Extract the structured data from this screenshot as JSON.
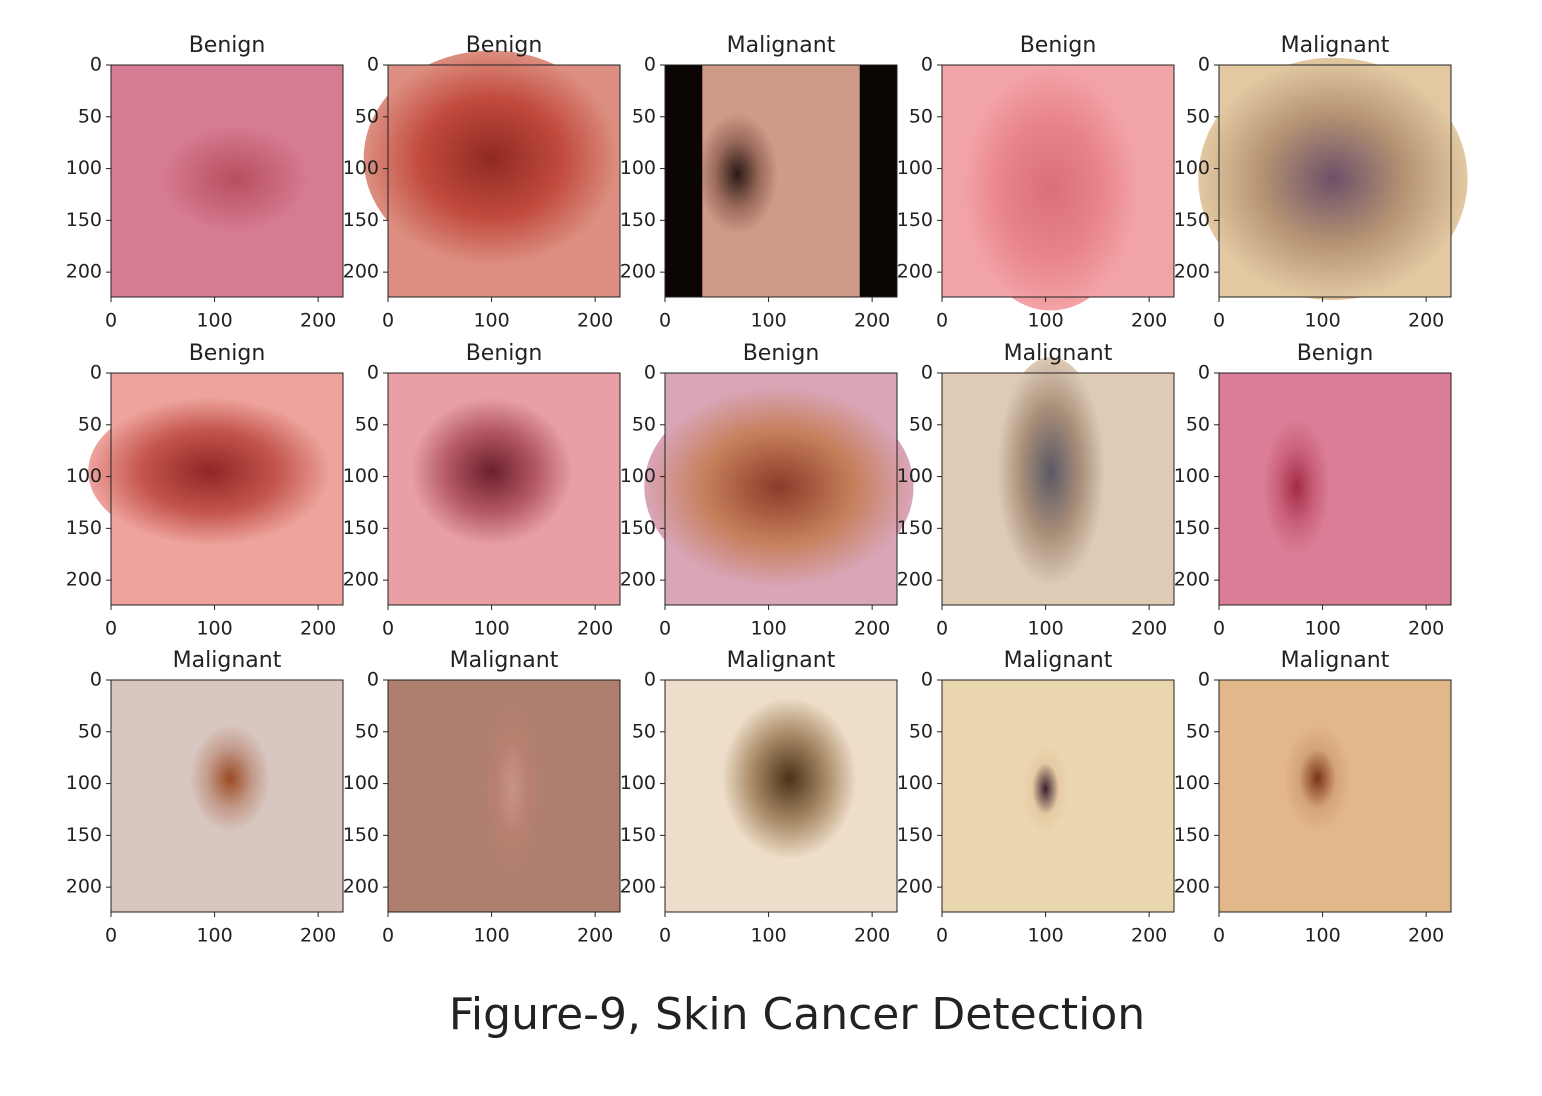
{
  "panels": [
    {
      "title": "Benign"
    },
    {
      "title": "Benign"
    },
    {
      "title": "Malignant"
    },
    {
      "title": "Benign"
    },
    {
      "title": "Malignant"
    },
    {
      "title": "Benign"
    },
    {
      "title": "Benign"
    },
    {
      "title": "Benign"
    },
    {
      "title": "Malignant"
    },
    {
      "title": "Benign"
    },
    {
      "title": "Malignant"
    },
    {
      "title": "Malignant"
    },
    {
      "title": "Malignant"
    },
    {
      "title": "Malignant"
    },
    {
      "title": "Malignant"
    }
  ],
  "axes": {
    "xlim": [
      0,
      224
    ],
    "ylim": [
      0,
      224
    ],
    "xticks": [
      0,
      100,
      200
    ],
    "yticks": [
      0,
      50,
      100,
      150,
      200
    ]
  },
  "caption": "Figure-9, Skin Cancer Detection"
}
